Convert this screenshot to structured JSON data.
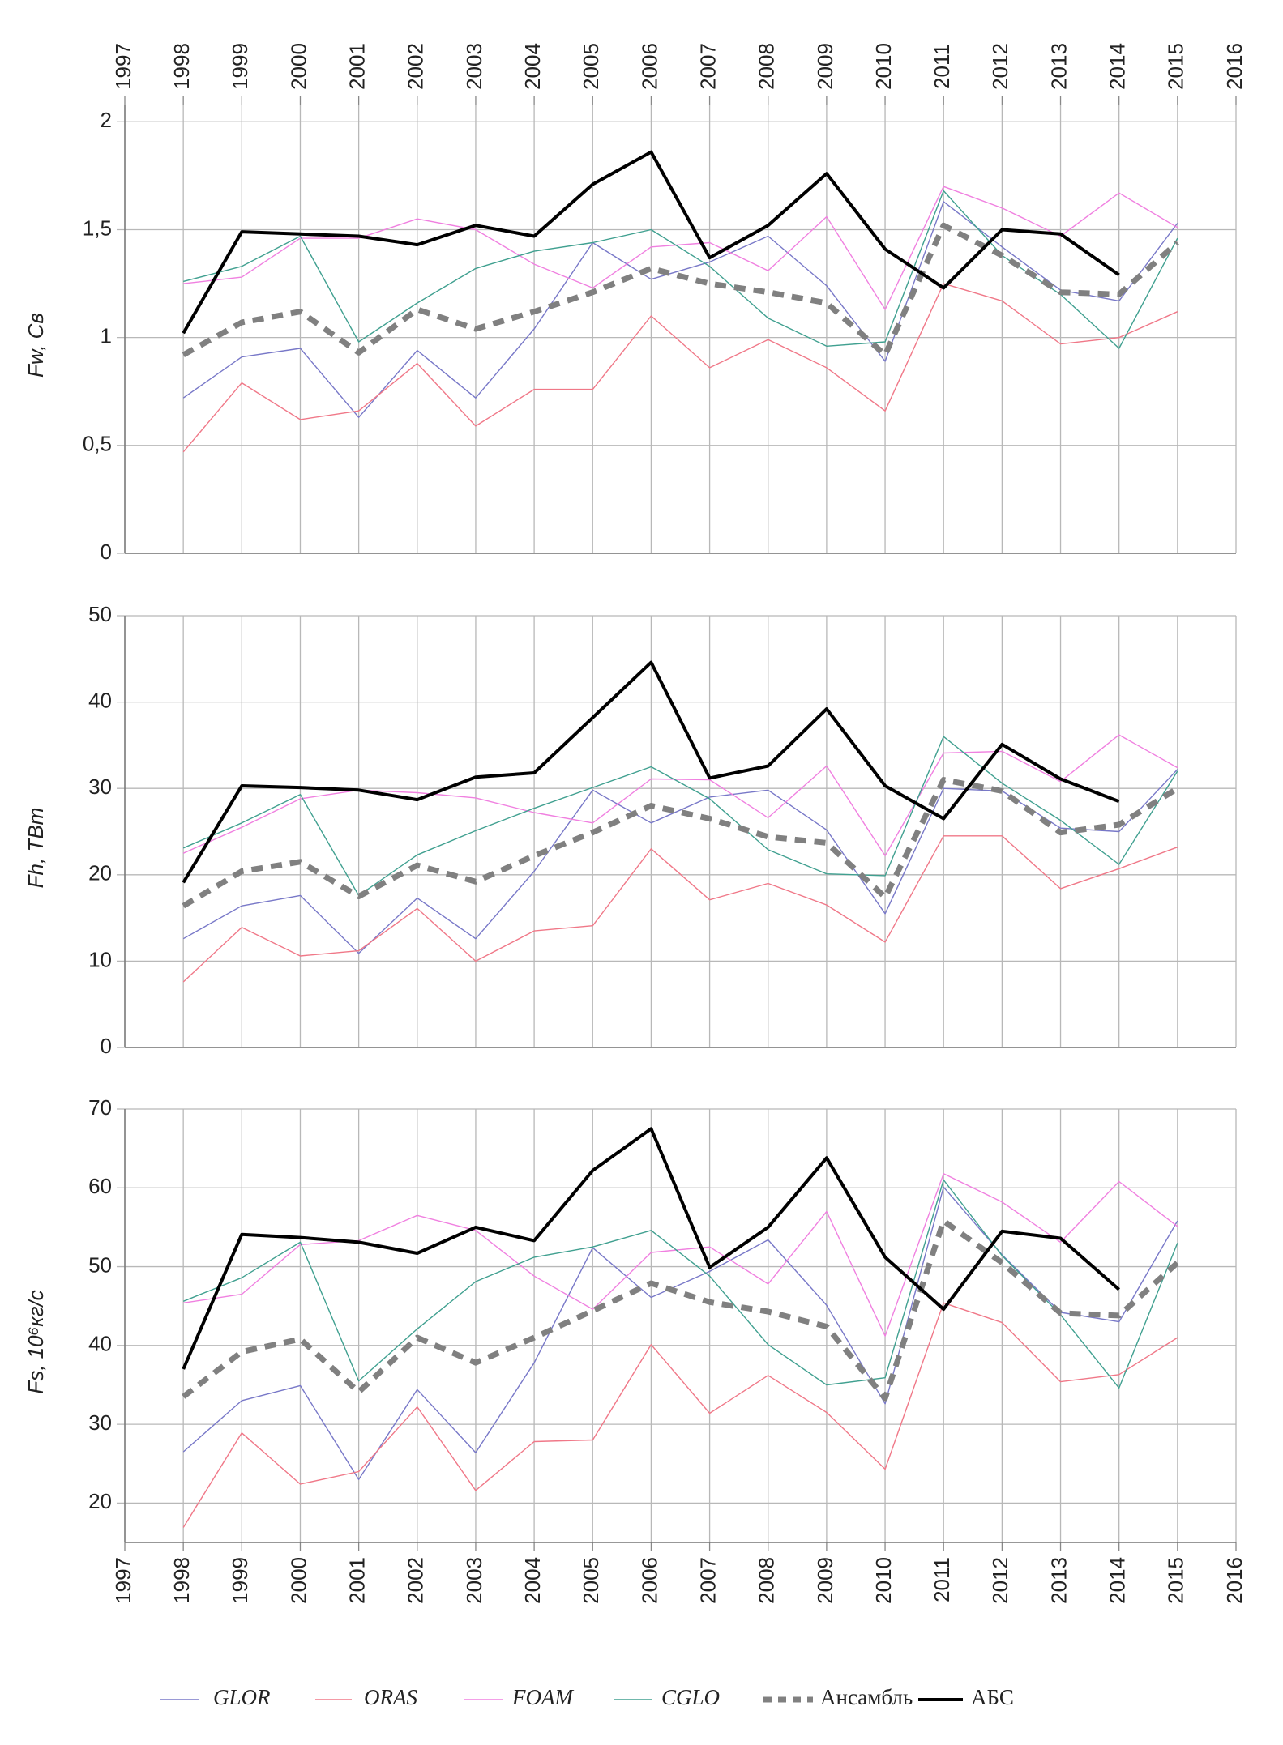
{
  "chart_data": [
    {
      "type": "line",
      "y_label": "Fw, Св",
      "xtick_labels": "top",
      "x": [
        1998,
        1999,
        2000,
        2001,
        2002,
        2003,
        2004,
        2005,
        2006,
        2007,
        2008,
        2009,
        2010,
        2011,
        2012,
        2013,
        2014,
        2015
      ],
      "xlim": [
        1997,
        2016
      ],
      "xticks": [
        1997,
        1998,
        1999,
        2000,
        2001,
        2002,
        2003,
        2004,
        2005,
        2006,
        2007,
        2008,
        2009,
        2010,
        2011,
        2012,
        2013,
        2014,
        2015,
        2016
      ],
      "ylim": [
        0,
        2.08
      ],
      "yticks": [
        0,
        {
          "value": 0.5,
          "label": "0,5"
        },
        1,
        {
          "value": 1.5,
          "label": "1,5"
        },
        2
      ],
      "grid": true,
      "series": [
        {
          "color": "#7878c8",
          "line_style": "solid",
          "line_weight": "thin",
          "values": [
            0.72,
            0.91,
            0.95,
            0.63,
            0.94,
            0.72,
            1.04,
            1.44,
            1.27,
            1.35,
            1.47,
            1.24,
            0.89,
            1.63,
            1.42,
            1.22,
            1.17,
            1.53
          ]
        },
        {
          "color": "#f07888",
          "line_style": "solid",
          "line_weight": "thin",
          "values": [
            0.47,
            0.79,
            0.62,
            0.66,
            0.88,
            0.59,
            0.76,
            0.76,
            1.1,
            0.86,
            0.99,
            0.86,
            0.66,
            1.25,
            1.17,
            0.97,
            1.0,
            1.12
          ]
        },
        {
          "color": "#f080e0",
          "line_style": "solid",
          "line_weight": "thin",
          "values": [
            1.25,
            1.28,
            1.46,
            1.46,
            1.55,
            1.5,
            1.34,
            1.23,
            1.42,
            1.44,
            1.31,
            1.56,
            1.13,
            1.7,
            1.6,
            1.47,
            1.67,
            1.51
          ]
        },
        {
          "color": "#40a090",
          "line_style": "solid",
          "line_weight": "thin",
          "values": [
            1.26,
            1.33,
            1.47,
            0.98,
            1.16,
            1.32,
            1.4,
            1.44,
            1.5,
            1.33,
            1.09,
            0.96,
            0.98,
            1.68,
            1.38,
            1.2,
            0.95,
            1.46
          ]
        },
        {
          "color": "#808080",
          "line_style": "dashed",
          "line_weight": "thick",
          "values": [
            0.92,
            1.07,
            1.12,
            0.93,
            1.13,
            1.04,
            1.12,
            1.21,
            1.32,
            1.25,
            1.21,
            1.16,
            0.92,
            1.52,
            1.38,
            1.21,
            1.2,
            1.44
          ]
        },
        {
          "color": "#000000",
          "line_style": "solid",
          "line_weight": "thick",
          "values": [
            1.02,
            1.49,
            1.48,
            1.47,
            1.43,
            1.52,
            1.47,
            1.71,
            1.86,
            1.37,
            1.52,
            1.76,
            1.41,
            1.23,
            1.5,
            1.48,
            1.29,
            null
          ]
        }
      ]
    },
    {
      "type": "line",
      "y_label": "Fh, ТВт",
      "xtick_labels": "none",
      "x": [
        1998,
        1999,
        2000,
        2001,
        2002,
        2003,
        2004,
        2005,
        2006,
        2007,
        2008,
        2009,
        2010,
        2011,
        2012,
        2013,
        2014,
        2015
      ],
      "xlim": [
        1997,
        2016
      ],
      "xticks": [
        1997,
        1998,
        1999,
        2000,
        2001,
        2002,
        2003,
        2004,
        2005,
        2006,
        2007,
        2008,
        2009,
        2010,
        2011,
        2012,
        2013,
        2014,
        2015,
        2016
      ],
      "ylim": [
        0,
        50
      ],
      "yticks": [
        0,
        10,
        20,
        30,
        40,
        50
      ],
      "grid": true,
      "series": [
        {
          "color": "#7878c8",
          "line_style": "solid",
          "line_weight": "thin",
          "values": [
            12.6,
            16.4,
            17.6,
            10.9,
            17.3,
            12.6,
            20.4,
            29.8,
            26.0,
            29.0,
            29.8,
            25.2,
            15.5,
            30.0,
            29.7,
            25.4,
            25.0,
            32.2
          ]
        },
        {
          "color": "#f07888",
          "line_style": "solid",
          "line_weight": "thin",
          "values": [
            7.6,
            13.9,
            10.6,
            11.2,
            16.1,
            10.0,
            13.5,
            14.1,
            23.0,
            17.1,
            19.0,
            16.5,
            12.2,
            24.5,
            24.5,
            18.4,
            20.7,
            23.2
          ]
        },
        {
          "color": "#f080e0",
          "line_style": "solid",
          "line_weight": "thin",
          "values": [
            22.5,
            25.5,
            28.8,
            29.8,
            29.5,
            28.9,
            27.2,
            26.0,
            31.1,
            31.0,
            26.6,
            32.6,
            22.2,
            34.1,
            34.3,
            30.8,
            36.2,
            32.4
          ]
        },
        {
          "color": "#40a090",
          "line_style": "solid",
          "line_weight": "thin",
          "values": [
            23.1,
            26.0,
            29.3,
            17.6,
            22.3,
            25.1,
            27.7,
            30.1,
            32.5,
            28.8,
            22.9,
            20.1,
            19.9,
            36.0,
            30.6,
            26.3,
            21.2,
            32.0
          ]
        },
        {
          "color": "#808080",
          "line_style": "dashed",
          "line_weight": "thick",
          "values": [
            16.4,
            20.4,
            21.5,
            17.5,
            21.1,
            19.2,
            22.2,
            24.9,
            28.0,
            26.5,
            24.4,
            23.7,
            17.4,
            31.0,
            29.7,
            24.9,
            25.8,
            30.0
          ]
        },
        {
          "color": "#000000",
          "line_style": "solid",
          "line_weight": "thick",
          "values": [
            19.1,
            30.3,
            30.1,
            29.8,
            28.7,
            31.3,
            31.8,
            38.2,
            44.6,
            31.2,
            32.6,
            39.2,
            30.3,
            26.5,
            35.1,
            31.1,
            28.5,
            null
          ]
        }
      ]
    },
    {
      "type": "line",
      "y_label": "Fs, 10⁶кг/с",
      "xtick_labels": "bottom",
      "x": [
        1998,
        1999,
        2000,
        2001,
        2002,
        2003,
        2004,
        2005,
        2006,
        2007,
        2008,
        2009,
        2010,
        2011,
        2012,
        2013,
        2014,
        2015
      ],
      "xlim": [
        1997,
        2016
      ],
      "xticks": [
        1997,
        1998,
        1999,
        2000,
        2001,
        2002,
        2003,
        2004,
        2005,
        2006,
        2007,
        2008,
        2009,
        2010,
        2011,
        2012,
        2013,
        2014,
        2015,
        2016
      ],
      "ylim": [
        15,
        70
      ],
      "yticks": [
        20,
        30,
        40,
        50,
        60,
        70
      ],
      "grid": true,
      "series": [
        {
          "name": "GLOR",
          "color": "#7878c8",
          "line_style": "solid",
          "line_weight": "thin",
          "values": [
            26.5,
            33,
            34.9,
            23,
            34.4,
            26.4,
            37.8,
            52.4,
            46.1,
            49.4,
            53.4,
            45.1,
            32.6,
            60.1,
            51.5,
            44.2,
            43,
            55.8
          ]
        },
        {
          "name": "ORAS",
          "color": "#f07888",
          "line_style": "solid",
          "line_weight": "thin",
          "values": [
            16.9,
            28.9,
            22.4,
            24,
            32.2,
            21.6,
            27.8,
            28,
            40.1,
            31.4,
            36.2,
            31.5,
            24.3,
            45.4,
            42.9,
            35.4,
            36.3,
            41
          ]
        },
        {
          "name": "FOAM",
          "color": "#f080e0",
          "line_style": "solid",
          "line_weight": "thin",
          "values": [
            45.4,
            46.5,
            52.8,
            53.3,
            56.5,
            54.6,
            48.8,
            44.6,
            51.8,
            52.5,
            47.8,
            57,
            41.2,
            61.8,
            58.2,
            53.1,
            60.8,
            55.1
          ]
        },
        {
          "name": "CGLO",
          "color": "#40a090",
          "line_style": "solid",
          "line_weight": "thin",
          "values": [
            45.6,
            48.6,
            53.1,
            35.5,
            42.1,
            48.1,
            51.2,
            52.5,
            54.6,
            48.8,
            40.1,
            35,
            35.9,
            61,
            51.4,
            43.9,
            34.6,
            53
          ]
        },
        {
          "name": "Ансамбль",
          "color": "#808080",
          "line_style": "dashed",
          "line_weight": "thick",
          "values": [
            33.5,
            39.2,
            40.8,
            34.1,
            41,
            37.8,
            41,
            44.4,
            47.9,
            45.5,
            44.3,
            42.4,
            33.3,
            55.8,
            50.5,
            44.1,
            43.8,
            50.5
          ]
        },
        {
          "name": "АБС",
          "color": "#000000",
          "line_style": "solid",
          "line_weight": "thick",
          "values": [
            37,
            54.1,
            53.7,
            53.1,
            51.7,
            55,
            53.3,
            62.2,
            67.5,
            49.9,
            55,
            63.8,
            51.2,
            44.6,
            54.5,
            53.6,
            47.1,
            null
          ]
        }
      ]
    }
  ]
}
